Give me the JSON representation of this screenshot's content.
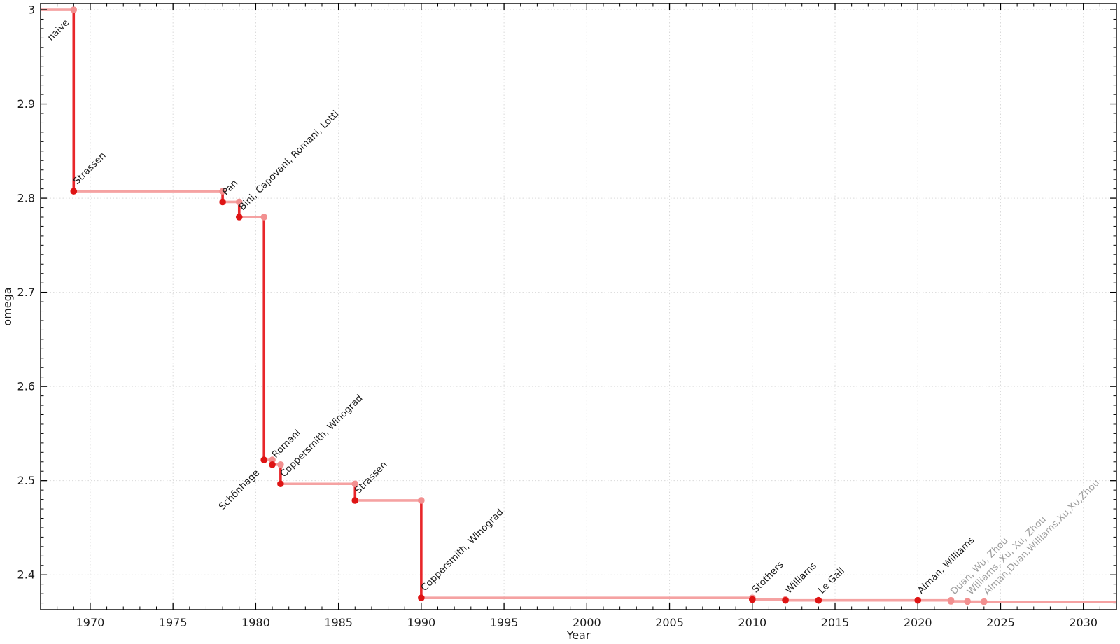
{
  "chart_data": {
    "type": "line",
    "subtype": "step-post",
    "title": "",
    "xlabel": "Year",
    "ylabel": "omega",
    "x_axis": {
      "min": 1967,
      "max": 2032,
      "major_ticks": [
        1970,
        1975,
        1980,
        1985,
        1990,
        1995,
        2000,
        2005,
        2010,
        2015,
        2020,
        2025,
        2030
      ],
      "major_tick_labels": [
        "1970",
        "1975",
        "1980",
        "1985",
        "1990",
        "1995",
        "2000",
        "2005",
        "2010",
        "2015",
        "2020",
        "2025",
        "2030"
      ],
      "minor_tick_step": 1
    },
    "y_axis": {
      "min": 2.363,
      "max": 3.0067,
      "major_ticks": [
        2.4,
        2.5,
        2.6,
        2.7,
        2.8,
        2.9,
        3.0
      ],
      "major_tick_labels": [
        "2.4",
        "2.5",
        "2.6",
        "2.7",
        "2.8",
        "2.9",
        "3"
      ],
      "minor_tick_step": 0.01
    },
    "grid": "dotted-major",
    "legend": "none",
    "baseline": {
      "label": "naive",
      "omega": 3.0,
      "label_at_year": 1969,
      "placement": "below",
      "muted": false
    },
    "discoveries": [
      {
        "label": "Strassen",
        "year": 1969,
        "omega": 2.8074,
        "placement": "above",
        "muted": false
      },
      {
        "label": "Pan",
        "year": 1978,
        "omega": 2.796,
        "placement": "above",
        "muted": false
      },
      {
        "label": "Bini, Capovani, Romani, Lotti",
        "year": 1979,
        "omega": 2.78,
        "placement": "above",
        "muted": false
      },
      {
        "label": "Schönhage",
        "year": 1980.5,
        "omega": 2.522,
        "placement": "below",
        "muted": false
      },
      {
        "label": "Romani",
        "year": 1981,
        "omega": 2.517,
        "placement": "above",
        "muted": false
      },
      {
        "label": "Coppersmith, Winograd",
        "year": 1981.5,
        "omega": 2.4966,
        "placement": "above",
        "muted": false
      },
      {
        "label": "Strassen",
        "year": 1986,
        "omega": 2.479,
        "placement": "above",
        "muted": false
      },
      {
        "label": "Coppersmith, Winograd",
        "year": 1990,
        "omega": 2.3755,
        "placement": "above",
        "muted": false
      },
      {
        "label": "Stothers",
        "year": 2010,
        "omega": 2.3737,
        "placement": "above",
        "muted": false
      },
      {
        "label": "Williams",
        "year": 2012,
        "omega": 2.3729,
        "placement": "above",
        "muted": false
      },
      {
        "label": "Le Gall",
        "year": 2014,
        "omega": 2.3728639,
        "placement": "above",
        "muted": false
      },
      {
        "label": "Alman, Williams",
        "year": 2020,
        "omega": 2.3728596,
        "placement": "above",
        "muted": false
      },
      {
        "label": "Duan, Wu, Zhou",
        "year": 2022,
        "omega": 2.371866,
        "placement": "above",
        "muted": true
      },
      {
        "label": "Williams, Xu, Xu, Zhou",
        "year": 2023,
        "omega": 2.371552,
        "placement": "above",
        "muted": true
      },
      {
        "label": "Alman,Duan,Williams,Xu,Xu,Zhou",
        "year": 2024,
        "omega": 2.371339,
        "placement": "above",
        "muted": true
      }
    ],
    "colors": {
      "step_line": "#F5A2A2",
      "drop_line": "#E8262A",
      "point": "#DE1414",
      "corner_point": "#F29090",
      "label": "#1A1A1A",
      "muted_label": "#9E9E9E",
      "grid": "#D9D9D9",
      "axis": "#000000",
      "tick_label": "#1A1A1A",
      "background": "#FFFFFF"
    }
  }
}
